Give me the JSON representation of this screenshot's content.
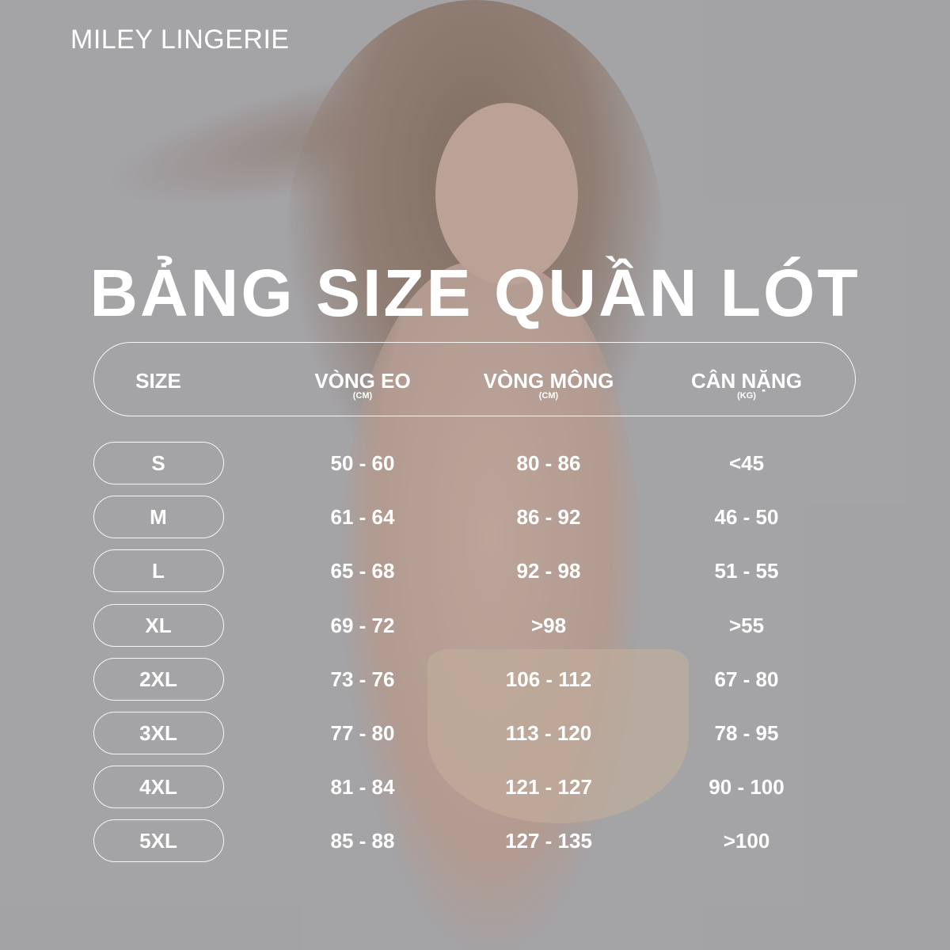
{
  "brand": "MILEY LINGERIE",
  "title": "BẢNG SIZE QUẦN LÓT",
  "columns": [
    {
      "label": "SIZE",
      "unit": ""
    },
    {
      "label": "VÒNG EO",
      "unit": "(CM)"
    },
    {
      "label": "VÒNG MÔNG",
      "unit": "(CM)"
    },
    {
      "label": "CÂN NẶNG",
      "unit": "(KG)"
    }
  ],
  "rows": [
    {
      "size": "S",
      "waist": "50 - 60",
      "hip": "80 - 86",
      "weight": "<45"
    },
    {
      "size": "M",
      "waist": "61 - 64",
      "hip": "86 - 92",
      "weight": "46 - 50"
    },
    {
      "size": "L",
      "waist": "65 - 68",
      "hip": "92 - 98",
      "weight": "51 - 55"
    },
    {
      "size": "XL",
      "waist": "69 - 72",
      "hip": ">98",
      "weight": ">55"
    },
    {
      "size": "2XL",
      "waist": "73 - 76",
      "hip": "106 - 112",
      "weight": "67 - 80"
    },
    {
      "size": "3XL",
      "waist": "77 - 80",
      "hip": "113 - 120",
      "weight": "78 - 95"
    },
    {
      "size": "4XL",
      "waist": "81 - 84",
      "hip": "121 - 127",
      "weight": "90 - 100"
    },
    {
      "size": "5XL",
      "waist": "85 - 88",
      "hip": "127 - 135",
      "weight": ">100"
    }
  ],
  "colors": {
    "background": "#a8a7aa",
    "text": "#ffffff"
  }
}
